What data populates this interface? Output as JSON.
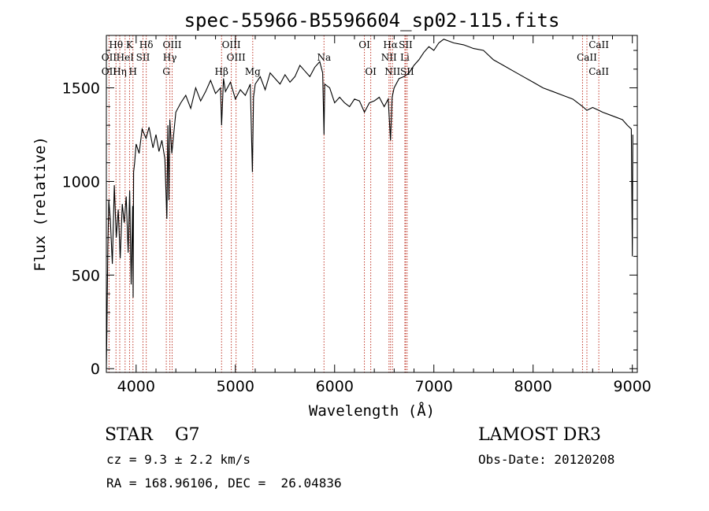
{
  "chart_data": {
    "type": "line",
    "title": "spec-55966-B5596604_sp02-115.fits",
    "xlabel": "Wavelength (Å)",
    "ylabel": "Flux (relative)",
    "xlim": [
      3700,
      9050
    ],
    "ylim": [
      -20,
      1780
    ],
    "xticks": [
      4000,
      5000,
      6000,
      7000,
      8000,
      9000
    ],
    "yticks": [
      0,
      500,
      1000,
      1500
    ],
    "series": [
      {
        "name": "flux",
        "x": [
          3700,
          3705,
          3715,
          3725,
          3740,
          3760,
          3780,
          3800,
          3820,
          3840,
          3860,
          3880,
          3900,
          3920,
          3935,
          3950,
          3965,
          3970,
          3975,
          3985,
          4000,
          4030,
          4060,
          4100,
          4130,
          4170,
          4200,
          4230,
          4260,
          4290,
          4310,
          4320,
          4330,
          4340,
          4360,
          4400,
          4450,
          4500,
          4550,
          4600,
          4650,
          4700,
          4750,
          4800,
          4850,
          4861,
          4880,
          4900,
          4950,
          5000,
          5050,
          5100,
          5150,
          5172,
          5183,
          5200,
          5250,
          5300,
          5350,
          5400,
          5450,
          5500,
          5550,
          5600,
          5650,
          5700,
          5750,
          5800,
          5850,
          5880,
          5893,
          5900,
          5950,
          6000,
          6050,
          6100,
          6150,
          6200,
          6250,
          6300,
          6350,
          6400,
          6450,
          6500,
          6540,
          6563,
          6580,
          6600,
          6650,
          6700,
          6750,
          6800,
          6850,
          6900,
          6950,
          7000,
          7050,
          7100,
          7150,
          7200,
          7300,
          7400,
          7500,
          7600,
          7700,
          7800,
          7900,
          8000,
          8100,
          8200,
          8300,
          8400,
          8500,
          8542,
          8600,
          8662,
          8700,
          8800,
          8900,
          8950,
          8990,
          9000,
          9005
        ],
        "values": [
          0,
          180,
          650,
          900,
          800,
          560,
          980,
          700,
          850,
          590,
          880,
          780,
          920,
          620,
          950,
          450,
          870,
          380,
          1050,
          1100,
          1200,
          1150,
          1280,
          1230,
          1290,
          1180,
          1250,
          1160,
          1220,
          1120,
          800,
          1300,
          900,
          1330,
          1150,
          1370,
          1420,
          1460,
          1390,
          1500,
          1430,
          1480,
          1540,
          1470,
          1500,
          1300,
          1550,
          1480,
          1530,
          1440,
          1490,
          1460,
          1520,
          1050,
          1450,
          1520,
          1560,
          1490,
          1580,
          1550,
          1520,
          1570,
          1530,
          1560,
          1620,
          1590,
          1560,
          1610,
          1640,
          1580,
          1250,
          1520,
          1500,
          1420,
          1450,
          1420,
          1400,
          1440,
          1430,
          1370,
          1420,
          1430,
          1450,
          1400,
          1440,
          1220,
          1450,
          1500,
          1550,
          1560,
          1580,
          1620,
          1650,
          1690,
          1720,
          1700,
          1740,
          1760,
          1750,
          1740,
          1730,
          1710,
          1700,
          1650,
          1620,
          1590,
          1560,
          1530,
          1500,
          1480,
          1460,
          1440,
          1400,
          1380,
          1395,
          1380,
          1370,
          1350,
          1330,
          1300,
          1280,
          600,
          1250
        ]
      }
    ],
    "lines": [
      {
        "label": "Hθ",
        "x": 3797,
        "row": 0
      },
      {
        "label": "OII",
        "x": 3727,
        "row": 1
      },
      {
        "label": "OII",
        "x": 3727,
        "row": 2
      },
      {
        "label": "Hη",
        "x": 3835,
        "row": 2
      },
      {
        "label": "HeI",
        "x": 3889,
        "row": 1
      },
      {
        "label": "K",
        "x": 3934,
        "row": 0
      },
      {
        "label": "SII",
        "x": 4069,
        "row": 1
      },
      {
        "label": "H",
        "x": 3968,
        "row": 2
      },
      {
        "label": "Hδ",
        "x": 4102,
        "row": 0
      },
      {
        "label": "OIII",
        "x": 4363,
        "row": 0
      },
      {
        "label": "Hγ",
        "x": 4340,
        "row": 1
      },
      {
        "label": "G",
        "x": 4304,
        "row": 2
      },
      {
        "label": "OIII",
        "x": 4959,
        "row": 0
      },
      {
        "label": "OIII",
        "x": 5007,
        "row": 1
      },
      {
        "label": "Hβ",
        "x": 4861,
        "row": 2
      },
      {
        "label": "Mg",
        "x": 5175,
        "row": 2
      },
      {
        "label": "Na",
        "x": 5893,
        "row": 1
      },
      {
        "label": "OI",
        "x": 6300,
        "row": 0
      },
      {
        "label": "OI",
        "x": 6364,
        "row": 2
      },
      {
        "label": "Hα",
        "x": 6563,
        "row": 0
      },
      {
        "label": "SII",
        "x": 6716,
        "row": 0
      },
      {
        "label": "NII",
        "x": 6548,
        "row": 1
      },
      {
        "label": "Li",
        "x": 6708,
        "row": 1
      },
      {
        "label": "NII",
        "x": 6583,
        "row": 2
      },
      {
        "label": "SII",
        "x": 6731,
        "row": 2
      },
      {
        "label": "CaII",
        "x": 8662,
        "row": 0
      },
      {
        "label": "CaII",
        "x": 8542,
        "row": 1
      },
      {
        "label": "CaII",
        "x": 8662,
        "row": 2
      }
    ],
    "line_markers_x": [
      3727,
      3797,
      3835,
      3889,
      3934,
      3968,
      4069,
      4102,
      4304,
      4340,
      4363,
      4861,
      4959,
      5007,
      5175,
      5893,
      6300,
      6364,
      6548,
      6563,
      6583,
      6708,
      6716,
      6731,
      8498,
      8542,
      8662
    ]
  },
  "info": {
    "object": "STAR    G7",
    "survey": "LAMOST DR3",
    "cz": "cz = 9.3 ± 2.2 km/s",
    "obs_date": "Obs-Date: 20120208",
    "coords": "RA = 168.96106, DEC =  26.04836"
  },
  "colors": {
    "axis": "#000000",
    "line_marker": "#c0392b",
    "spectrum": "#000000"
  }
}
